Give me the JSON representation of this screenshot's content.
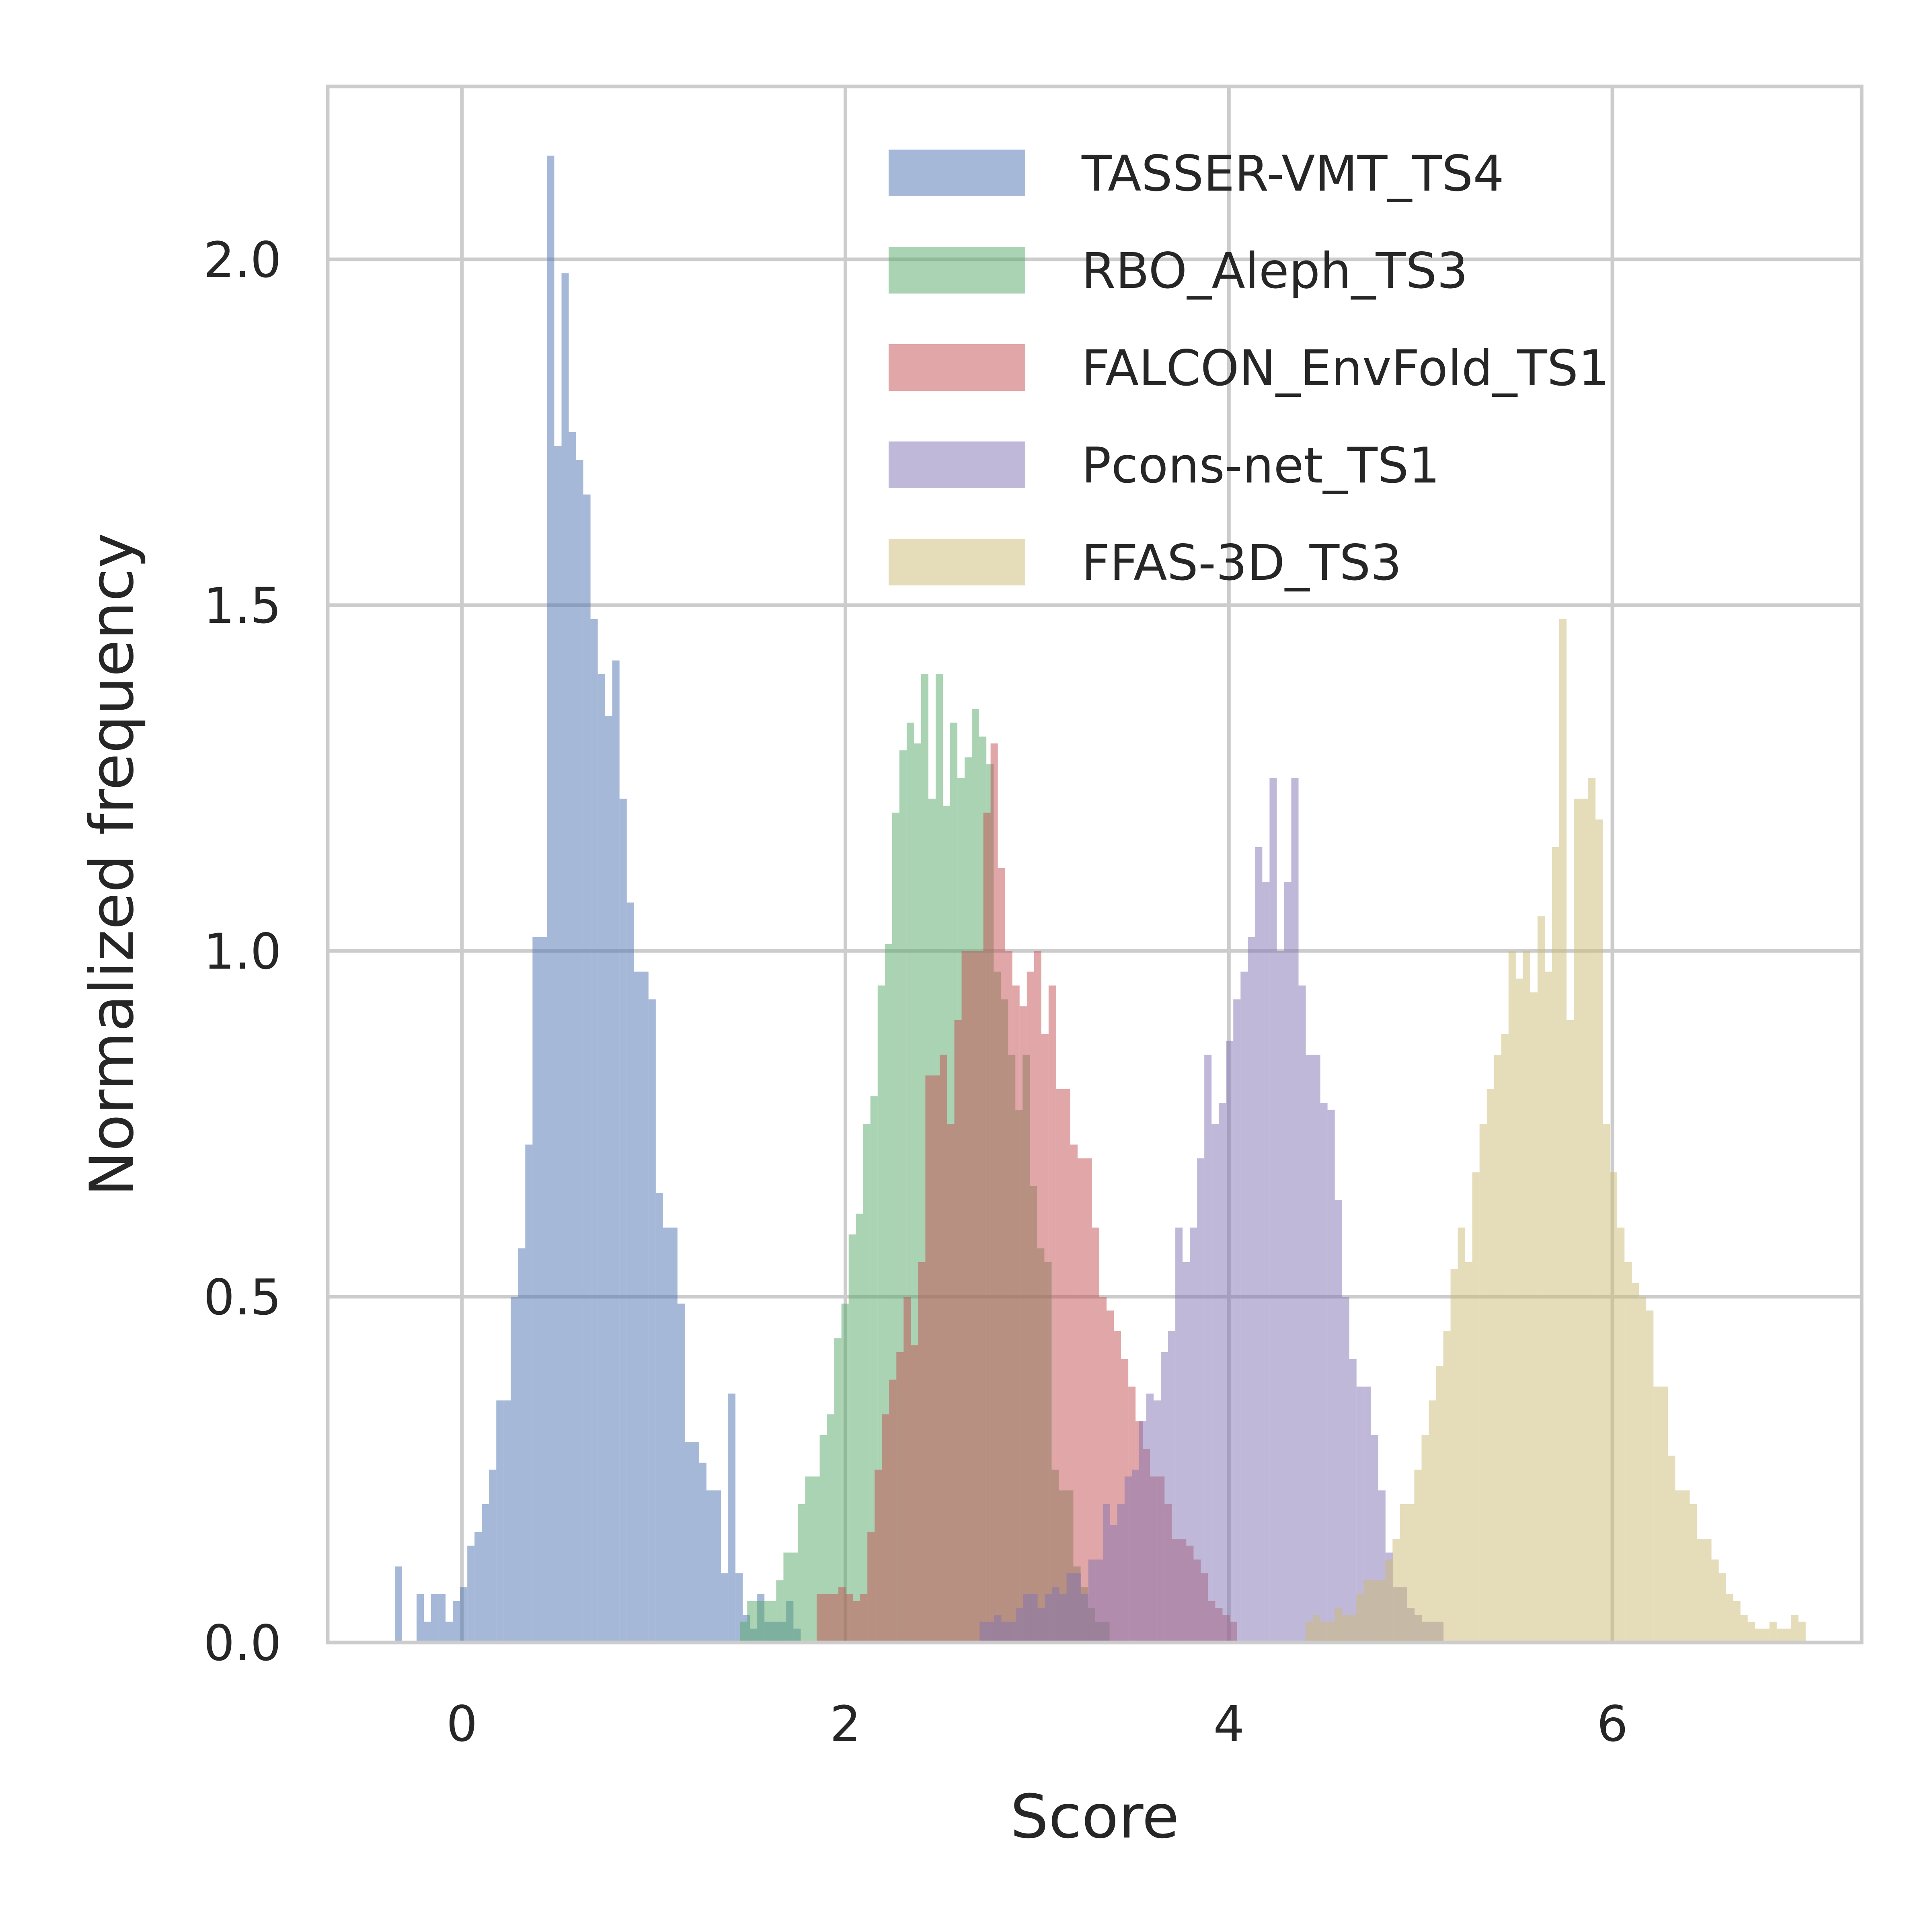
{
  "chart_data": {
    "type": "histogram",
    "title": "",
    "xlabel": "Score",
    "ylabel": "Normalized frequency",
    "xlim": [
      -0.7,
      7.3
    ],
    "ylim": [
      0.0,
      2.25
    ],
    "xticks": [
      0,
      2,
      4,
      6
    ],
    "xtick_labels": [
      "0",
      "2",
      "4",
      "6"
    ],
    "yticks": [
      0.0,
      0.5,
      1.0,
      1.5,
      2.0
    ],
    "ytick_labels": [
      "0.0",
      "0.5",
      "1.0",
      "1.5",
      "2.0"
    ],
    "grid": true,
    "legend_position": "top-right",
    "series": [
      {
        "name": "TASSER-VMT_TS4",
        "color": "#4c72b0",
        "bin_start": -0.35,
        "bin_width": 0.0378,
        "values": [
          0.11,
          0,
          0,
          0.07,
          0.03,
          0.07,
          0.07,
          0.03,
          0.06,
          0.08,
          0.14,
          0.16,
          0.2,
          0.25,
          0.35,
          0.35,
          0.5,
          0.57,
          0.72,
          1.02,
          1.02,
          2.15,
          1.73,
          1.98,
          1.75,
          1.71,
          1.66,
          1.48,
          1.4,
          1.34,
          1.42,
          1.22,
          1.07,
          0.97,
          0.97,
          0.93,
          0.65,
          0.6,
          0.6,
          0.49,
          0.29,
          0.29,
          0.26,
          0.22,
          0.22,
          0.1,
          0.36,
          0.1,
          0.04,
          0.02,
          0.07,
          0.03,
          0.03,
          0.03,
          0.06,
          0.02
        ]
      },
      {
        "name": "RBO_Aleph_TS3",
        "color": "#55a868",
        "bin_start": 1.45,
        "bin_width": 0.0378,
        "values": [
          0.03,
          0.06,
          0.06,
          0.06,
          0.06,
          0.09,
          0.13,
          0.13,
          0.2,
          0.24,
          0.24,
          0.3,
          0.33,
          0.44,
          0.49,
          0.59,
          0.62,
          0.75,
          0.79,
          0.95,
          1.01,
          1.2,
          1.29,
          1.33,
          1.3,
          1.4,
          1.22,
          1.4,
          1.21,
          1.33,
          1.25,
          1.28,
          1.35,
          1.31,
          1.27,
          0.97,
          0.93,
          0.85,
          0.77,
          0.85,
          0.66,
          0.57,
          0.55,
          0.25,
          0.22,
          0.22,
          0.11,
          0.08,
          0.05,
          0.03,
          0.03
        ]
      },
      {
        "name": "FALCON_EnvFold_TS1",
        "color": "#c44e52",
        "bin_start": 1.85,
        "bin_width": 0.0378,
        "values": [
          0.07,
          0.07,
          0.07,
          0.08,
          0.07,
          0.06,
          0.07,
          0.16,
          0.25,
          0.33,
          0.38,
          0.42,
          0.5,
          0.43,
          0.55,
          0.82,
          0.82,
          0.85,
          0.75,
          0.9,
          1.0,
          1.0,
          1.0,
          1.2,
          1.3,
          1.12,
          1.0,
          0.95,
          0.92,
          0.97,
          1.0,
          0.88,
          0.95,
          0.8,
          0.8,
          0.72,
          0.7,
          0.7,
          0.6,
          0.5,
          0.48,
          0.45,
          0.41,
          0.37,
          0.32,
          0.28,
          0.24,
          0.24,
          0.2,
          0.15,
          0.15,
          0.14,
          0.12,
          0.1,
          0.06,
          0.05,
          0.04,
          0.03
        ]
      },
      {
        "name": "Pcons-net_TS1",
        "color": "#8172b2",
        "bin_start": 2.7,
        "bin_width": 0.0378,
        "values": [
          0.03,
          0.03,
          0.04,
          0.03,
          0.03,
          0.05,
          0.07,
          0.07,
          0.05,
          0.07,
          0.08,
          0.07,
          0.1,
          0.1,
          0.07,
          0.12,
          0.12,
          0.2,
          0.17,
          0.2,
          0.24,
          0.25,
          0.32,
          0.36,
          0.35,
          0.42,
          0.45,
          0.6,
          0.55,
          0.6,
          0.7,
          0.85,
          0.75,
          0.78,
          0.87,
          0.93,
          0.97,
          1.02,
          1.15,
          1.1,
          1.25,
          1.0,
          1.1,
          1.25,
          0.95,
          0.85,
          0.85,
          0.78,
          0.77,
          0.64,
          0.5,
          0.41,
          0.37,
          0.37,
          0.3,
          0.22,
          0.13,
          0.08,
          0.08,
          0.05,
          0.04,
          0.03,
          0.03,
          0.03
        ]
      },
      {
        "name": "FFAS-3D_TS3",
        "color": "#ccb974",
        "bin_start": 4.4,
        "bin_width": 0.0378,
        "values": [
          0.03,
          0.04,
          0.03,
          0.03,
          0.05,
          0.04,
          0.04,
          0.07,
          0.09,
          0.09,
          0.09,
          0.12,
          0.15,
          0.2,
          0.2,
          0.25,
          0.3,
          0.35,
          0.4,
          0.45,
          0.54,
          0.6,
          0.55,
          0.68,
          0.75,
          0.8,
          0.85,
          0.88,
          1.0,
          0.96,
          1.0,
          0.94,
          1.05,
          0.97,
          1.15,
          1.48,
          0.9,
          1.22,
          1.22,
          1.25,
          1.19,
          0.75,
          0.68,
          0.6,
          0.55,
          0.52,
          0.5,
          0.48,
          0.37,
          0.37,
          0.27,
          0.22,
          0.22,
          0.2,
          0.15,
          0.15,
          0.12,
          0.1,
          0.07,
          0.06,
          0.04,
          0.03,
          0.02,
          0.02,
          0.03,
          0.02,
          0.02,
          0.04,
          0.03
        ]
      }
    ]
  }
}
